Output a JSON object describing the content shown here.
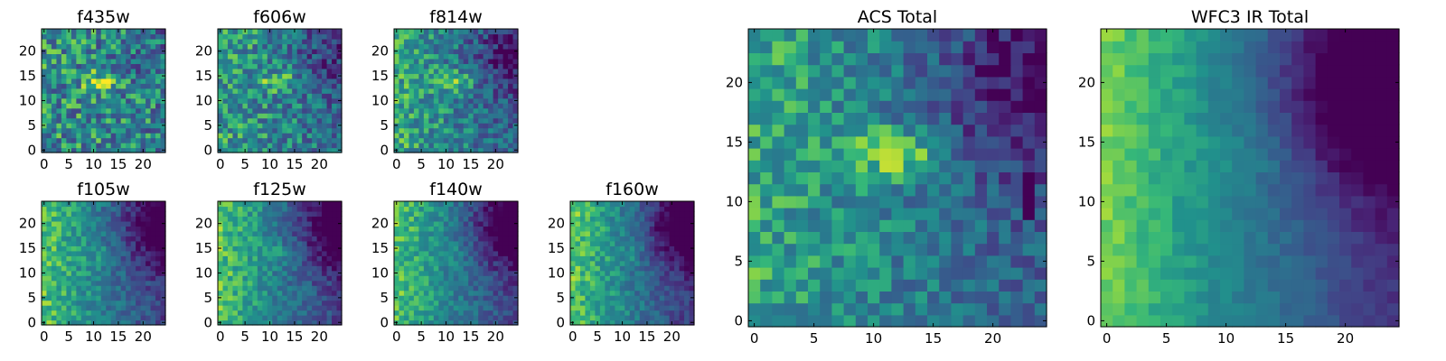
{
  "chart_data": {
    "type": "heatmap",
    "colormap": "viridis",
    "colors": [
      "#440154",
      "#3b528b",
      "#21918c",
      "#5ec962",
      "#fde725"
    ],
    "grid": "25x25",
    "panels": [
      {
        "id": "f435w",
        "title": "f435w",
        "xticks": [
          0,
          5,
          10,
          15,
          20
        ],
        "yticks": [
          0,
          5,
          10,
          15,
          20
        ],
        "xlim": [
          -0.5,
          24.5
        ],
        "ylim": [
          -0.5,
          24.5
        ],
        "noise": 0.3,
        "blob": 0.35,
        "grad": 0.05,
        "darkCorner": 0.1,
        "spike": 0.0,
        "seed": 11
      },
      {
        "id": "f606w",
        "title": "f606w",
        "xticks": [
          0,
          5,
          10,
          15,
          20
        ],
        "yticks": [
          0,
          5,
          10,
          15,
          20
        ],
        "xlim": [
          -0.5,
          24.5
        ],
        "ylim": [
          -0.5,
          24.5
        ],
        "noise": 0.25,
        "blob": 0.3,
        "grad": 0.2,
        "darkCorner": 0.25,
        "spike": 0.0,
        "seed": 23
      },
      {
        "id": "f814w",
        "title": "f814w",
        "xticks": [
          0,
          5,
          10,
          15,
          20
        ],
        "yticks": [
          0,
          5,
          10,
          15,
          20
        ],
        "xlim": [
          -0.5,
          24.5
        ],
        "ylim": [
          -0.5,
          24.5
        ],
        "noise": 0.22,
        "blob": 0.3,
        "grad": 0.3,
        "darkCorner": 0.35,
        "spike": 0.0,
        "seed": 37
      },
      {
        "id": "f105w",
        "title": "f105w",
        "xticks": [
          0,
          5,
          10,
          15,
          20
        ],
        "yticks": [
          0,
          5,
          10,
          15,
          20
        ],
        "xlim": [
          -0.5,
          24.5
        ],
        "ylim": [
          -0.5,
          24.5
        ],
        "noise": 0.14,
        "blob": 0.12,
        "grad": 0.55,
        "darkCorner": 0.45,
        "spike": 0.0,
        "seed": 41
      },
      {
        "id": "f125w",
        "title": "f125w",
        "xticks": [
          0,
          5,
          10,
          15,
          20
        ],
        "yticks": [
          0,
          5,
          10,
          15,
          20
        ],
        "xlim": [
          -0.5,
          24.5
        ],
        "ylim": [
          -0.5,
          24.5
        ],
        "noise": 0.14,
        "blob": 0.12,
        "grad": 0.55,
        "darkCorner": 0.45,
        "spike": 0.0,
        "seed": 53
      },
      {
        "id": "f140w",
        "title": "f140w",
        "xticks": [
          0,
          5,
          10,
          15,
          20
        ],
        "yticks": [
          0,
          5,
          10,
          15,
          20
        ],
        "xlim": [
          -0.5,
          24.5
        ],
        "ylim": [
          -0.5,
          24.5
        ],
        "noise": 0.13,
        "blob": 0.1,
        "grad": 0.55,
        "darkCorner": 0.5,
        "spike": 0.0,
        "seed": 67
      },
      {
        "id": "f160w",
        "title": "f160w",
        "xticks": [
          0,
          5,
          10,
          15,
          20
        ],
        "yticks": [
          0,
          5,
          10,
          15,
          20
        ],
        "xlim": [
          -0.5,
          24.5
        ],
        "ylim": [
          -0.5,
          24.5
        ],
        "noise": 0.13,
        "blob": 0.08,
        "grad": 0.6,
        "darkCorner": 0.55,
        "spike": 0.0,
        "seed": 79
      },
      {
        "id": "acs-total",
        "title": "ACS Total",
        "xticks": [
          0,
          5,
          10,
          15,
          20
        ],
        "yticks": [
          0,
          5,
          10,
          15,
          20
        ],
        "xlim": [
          -0.5,
          24.5
        ],
        "ylim": [
          -0.5,
          24.5
        ],
        "noise": 0.18,
        "blob": 0.4,
        "grad": 0.3,
        "darkCorner": 0.4,
        "spike": 0.9,
        "seed": 97
      },
      {
        "id": "wfc3-total",
        "title": "WFC3 IR Total",
        "xticks": [
          0,
          5,
          10,
          15,
          20
        ],
        "yticks": [
          0,
          5,
          10,
          15,
          20
        ],
        "xlim": [
          -0.5,
          24.5
        ],
        "ylim": [
          -0.5,
          24.5
        ],
        "noise": 0.06,
        "blob": 0.08,
        "grad": 0.65,
        "darkCorner": 0.65,
        "spike": 0.0,
        "seed": 131
      }
    ]
  }
}
